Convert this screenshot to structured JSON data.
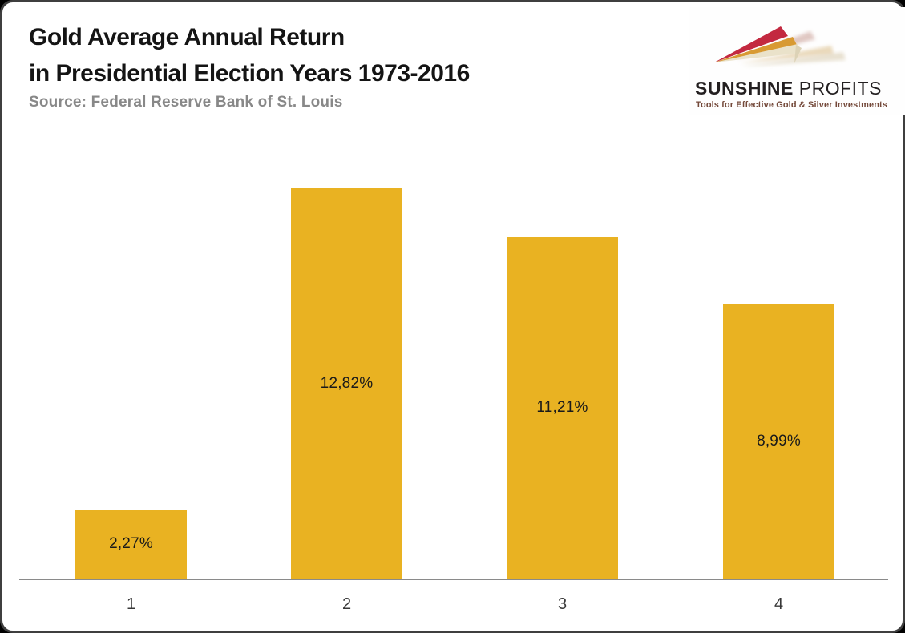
{
  "header": {
    "title_line1": "Gold Average Annual Return",
    "title_line2": "in Presidential Election Years 1973-2016",
    "source": "Source: Federal Reserve Bank of St. Louis"
  },
  "logo": {
    "name_bold": "SUNSHINE",
    "name_regular": " PROFITS",
    "tagline": "Tools for Effective Gold & Silver Investments",
    "ray_colors": {
      "red": "#C32940",
      "gold": "#D89A33",
      "cream": "#EAE2CA"
    }
  },
  "chart_data": {
    "type": "bar",
    "title": "Gold Average Annual Return in Presidential Election Years 1973-2016",
    "source": "Source: Federal Reserve Bank of St. Louis",
    "categories": [
      "1",
      "2",
      "3",
      "4"
    ],
    "values": [
      2.27,
      12.82,
      11.21,
      8.99
    ],
    "value_labels": [
      "2,27%",
      "12,82%",
      "11,21%",
      "8,99%"
    ],
    "xlabel": "",
    "ylabel": "",
    "ylim": [
      0,
      14.2
    ],
    "bar_color": "#E9B222",
    "axis_color": "#8A8A8A",
    "grid": false,
    "legend": false,
    "value_label_position": "inside-center"
  }
}
